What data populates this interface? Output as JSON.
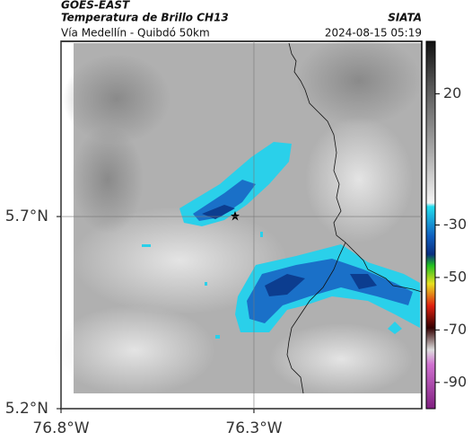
{
  "chart_data": {
    "type": "map",
    "title": "GOES-EAST",
    "subtitle": "Temperatura de Brillo CH13",
    "caption": "Vía Medellín - Quibdó 50km",
    "source": "SIATA",
    "timestamp": "2024-08-15 05:19",
    "xlim": [
      -76.8,
      -75.865
    ],
    "ylim": [
      5.2,
      6.156
    ],
    "xticks": [
      {
        "value": -76.8,
        "label": "76.8°W"
      },
      {
        "value": -76.3,
        "label": "76.3°W"
      }
    ],
    "yticks": [
      {
        "value": 5.2,
        "label": "5.2°N"
      },
      {
        "value": 5.7,
        "label": "5.7°N"
      }
    ],
    "colorbar": {
      "clim": [
        -100,
        40
      ],
      "ticks": [
        20,
        -30,
        -50,
        -70,
        -90
      ]
    },
    "grid": true
  }
}
